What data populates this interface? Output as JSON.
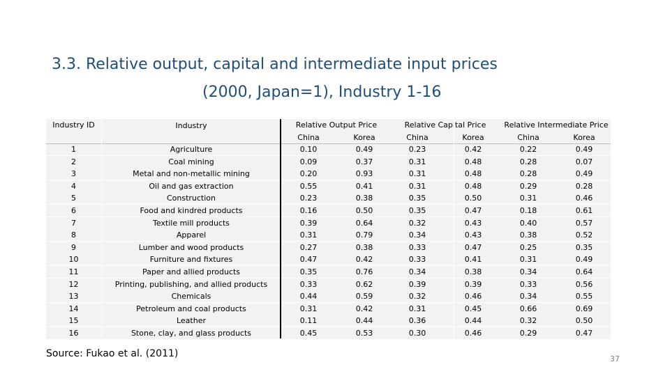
{
  "title": {
    "line1": "3.3. Relative output, capital and intermediate input prices",
    "line2": "(2000, Japan=1), Industry 1-16"
  },
  "table": {
    "headers": {
      "industry_id": "Industry ID",
      "industry": "Industry",
      "output_price": "Relative Output Price",
      "capital_price": "Relative Capital Price",
      "intermediate_price": "Relative Intermediate Price",
      "china": "China",
      "korea": "Korea"
    },
    "rows": [
      {
        "id": "1",
        "industry": "Agriculture",
        "out_cn": "0.10",
        "out_kr": "0.49",
        "cap_cn": "0.23",
        "cap_kr": "0.42",
        "int_cn": "0.22",
        "int_kr": "0.49"
      },
      {
        "id": "2",
        "industry": "Coal mining",
        "out_cn": "0.09",
        "out_kr": "0.37",
        "cap_cn": "0.31",
        "cap_kr": "0.48",
        "int_cn": "0.28",
        "int_kr": "0.07"
      },
      {
        "id": "3",
        "industry": "Metal and non-metallic mining",
        "out_cn": "0.20",
        "out_kr": "0.93",
        "cap_cn": "0.31",
        "cap_kr": "0.48",
        "int_cn": "0.28",
        "int_kr": "0.49"
      },
      {
        "id": "4",
        "industry": "Oil and gas extraction",
        "out_cn": "0.55",
        "out_kr": "0.41",
        "cap_cn": "0.31",
        "cap_kr": "0.48",
        "int_cn": "0.29",
        "int_kr": "0.28"
      },
      {
        "id": "5",
        "industry": "Construction",
        "out_cn": "0.23",
        "out_kr": "0.38",
        "cap_cn": "0.35",
        "cap_kr": "0.50",
        "int_cn": "0.31",
        "int_kr": "0.46"
      },
      {
        "id": "6",
        "industry": "Food and kindred products",
        "out_cn": "0.16",
        "out_kr": "0.50",
        "cap_cn": "0.35",
        "cap_kr": "0.47",
        "int_cn": "0.18",
        "int_kr": "0.61"
      },
      {
        "id": "7",
        "industry": "Textile mill products",
        "out_cn": "0.39",
        "out_kr": "0.64",
        "cap_cn": "0.32",
        "cap_kr": "0.43",
        "int_cn": "0.40",
        "int_kr": "0.57"
      },
      {
        "id": "8",
        "industry": "Apparel",
        "out_cn": "0.31",
        "out_kr": "0.79",
        "cap_cn": "0.34",
        "cap_kr": "0.43",
        "int_cn": "0.38",
        "int_kr": "0.52"
      },
      {
        "id": "9",
        "industry": "Lumber and wood products",
        "out_cn": "0.27",
        "out_kr": "0.38",
        "cap_cn": "0.33",
        "cap_kr": "0.47",
        "int_cn": "0.25",
        "int_kr": "0.35"
      },
      {
        "id": "10",
        "industry": "Furniture and fixtures",
        "out_cn": "0.47",
        "out_kr": "0.42",
        "cap_cn": "0.33",
        "cap_kr": "0.41",
        "int_cn": "0.31",
        "int_kr": "0.49"
      },
      {
        "id": "11",
        "industry": "Paper and allied products",
        "out_cn": "0.35",
        "out_kr": "0.76",
        "cap_cn": "0.34",
        "cap_kr": "0.38",
        "int_cn": "0.34",
        "int_kr": "0.64"
      },
      {
        "id": "12",
        "industry": "Printing, publishing, and allied products",
        "out_cn": "0.33",
        "out_kr": "0.62",
        "cap_cn": "0.39",
        "cap_kr": "0.39",
        "int_cn": "0.33",
        "int_kr": "0.56"
      },
      {
        "id": "13",
        "industry": "Chemicals",
        "out_cn": "0.44",
        "out_kr": "0.59",
        "cap_cn": "0.32",
        "cap_kr": "0.46",
        "int_cn": "0.34",
        "int_kr": "0.55"
      },
      {
        "id": "14",
        "industry": "Petroleum and coal products",
        "out_cn": "0.31",
        "out_kr": "0.42",
        "cap_cn": "0.31",
        "cap_kr": "0.45",
        "int_cn": "0.66",
        "int_kr": "0.69"
      },
      {
        "id": "15",
        "industry": "Leather",
        "out_cn": "0.11",
        "out_kr": "0.44",
        "cap_cn": "0.36",
        "cap_kr": "0.44",
        "int_cn": "0.32",
        "int_kr": "0.50"
      },
      {
        "id": "16",
        "industry": "Stone, clay, and glass products",
        "out_cn": "0.45",
        "out_kr": "0.53",
        "cap_cn": "0.30",
        "cap_kr": "0.46",
        "int_cn": "0.29",
        "int_kr": "0.47"
      }
    ]
  },
  "source": "Source: Fukao et al. (2011)",
  "page_number": "37"
}
